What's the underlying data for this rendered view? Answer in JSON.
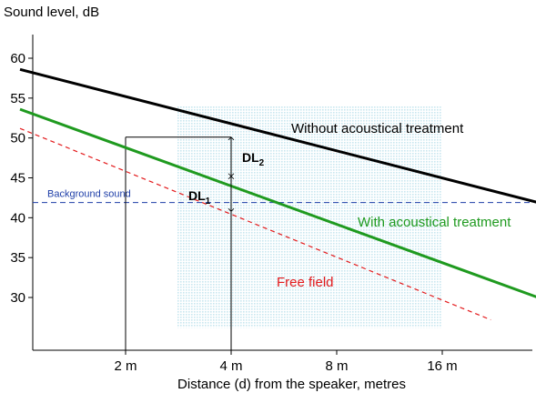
{
  "chart_data": {
    "type": "line",
    "ylabel": "Sound level, dB",
    "xlabel": "Distance (d) from the speaker, metres",
    "x_scale": "log2",
    "xlim": [
      0.8,
      30
    ],
    "ylim": [
      25,
      62
    ],
    "x_ticks": [
      {
        "value": 2,
        "label": "2 m"
      },
      {
        "value": 4,
        "label": "4 m"
      },
      {
        "value": 8,
        "label": "8 m"
      },
      {
        "value": 16,
        "label": "16 m"
      }
    ],
    "y_ticks": [
      30,
      35,
      40,
      45,
      50,
      55,
      60
    ],
    "series": [
      {
        "name": "Without acoustical treatment",
        "color": "#000000",
        "style": "solid",
        "points": [
          [
            1.0,
            58.6
          ],
          [
            30,
            41.9
          ]
        ]
      },
      {
        "name": "With acoustical treatment",
        "color": "#1f9a1f",
        "style": "solid",
        "points": [
          [
            1.0,
            53.6
          ],
          [
            30,
            30.0
          ]
        ]
      },
      {
        "name": "Free field",
        "color": "#e31a1c",
        "style": "dashed",
        "points": [
          [
            1.0,
            51.2
          ],
          [
            22,
            27.2
          ]
        ]
      }
    ],
    "background_sound": {
      "label": "Background sound",
      "level": 41.9,
      "color": "#1f3fa8"
    },
    "annotations": {
      "dl2": {
        "label": "DL",
        "sub": "2",
        "x": 4,
        "y_from": 50.1,
        "y_to": 45.2
      },
      "dl1": {
        "label": "DL",
        "sub": "1",
        "x": 4,
        "y_from": 45.2,
        "y_to": 40.8
      },
      "reference": {
        "level": 50.1,
        "x_from": 2,
        "x_to": 4
      }
    },
    "shaded_region": {
      "x_from": 2.8,
      "x_to": 16,
      "color": "#bfe3ec"
    }
  }
}
